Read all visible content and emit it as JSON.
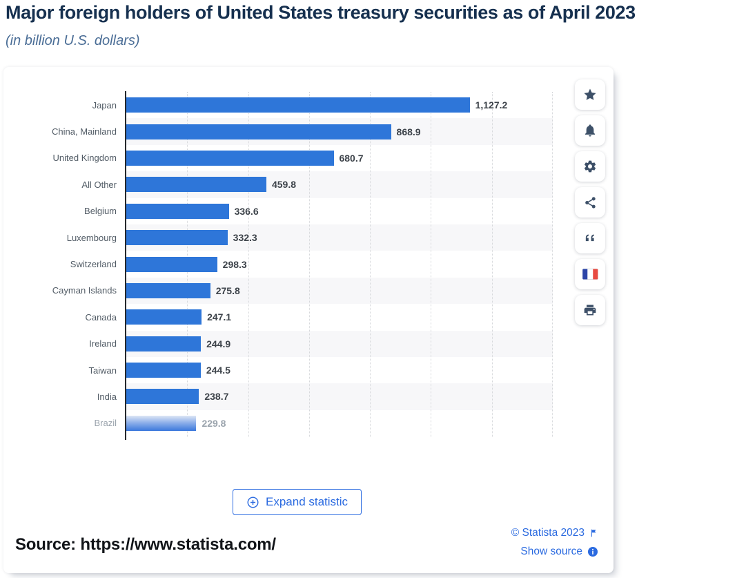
{
  "header": {
    "title": "Major foreign holders of United States treasury securities as of April 2023",
    "subtitle": "(in billion U.S. dollars)"
  },
  "chart_data": {
    "type": "bar",
    "orientation": "horizontal",
    "title": "Major foreign holders of United States treasury securities as of April 2023",
    "subtitle": "(in billion U.S. dollars)",
    "xlabel": "",
    "ylabel": "",
    "categories": [
      "Japan",
      "China, Mainland",
      "United Kingdom",
      "All Other",
      "Belgium",
      "Luxembourg",
      "Switzerland",
      "Cayman Islands",
      "Canada",
      "Ireland",
      "Taiwan",
      "India",
      "Brazil"
    ],
    "values": [
      1127.2,
      868.9,
      680.7,
      459.8,
      336.6,
      332.3,
      298.3,
      275.8,
      247.1,
      244.9,
      244.5,
      238.7,
      229.8
    ],
    "value_labels": [
      "1,127.2",
      "868.9",
      "680.7",
      "459.8",
      "336.6",
      "332.3",
      "298.3",
      "275.8",
      "247.1",
      "244.9",
      "244.5",
      "238.7",
      "229.8"
    ],
    "xlim": [
      0,
      1400
    ],
    "gridlines": [
      200,
      400,
      600,
      800,
      1000,
      1200,
      1400
    ],
    "grid": "vertical dotted lines, alternating row shading",
    "legend": "none",
    "bar_color": "#2e76d9",
    "last_bar_faded": true
  },
  "toolbar": {
    "icons": [
      {
        "name": "star-icon",
        "action": "favorite"
      },
      {
        "name": "bell-icon",
        "action": "alerts"
      },
      {
        "name": "gear-icon",
        "action": "settings"
      },
      {
        "name": "share-icon",
        "action": "share"
      },
      {
        "name": "quote-icon",
        "action": "cite"
      },
      {
        "name": "french-flag-icon",
        "action": "language-french"
      },
      {
        "name": "printer-icon",
        "action": "print"
      }
    ]
  },
  "footer": {
    "expand_label": "Expand statistic",
    "copyright": "© Statista 2023",
    "show_source": "Show source",
    "source_line": "Source: https://www.statista.com/"
  },
  "colors": {
    "bar": "#2e76d9",
    "title": "#16304f",
    "subtitle": "#4a6d96",
    "link": "#2a6ae0",
    "row_stripe": "#f7f7f9",
    "value_text": "#3d434a",
    "category_text": "#525c66",
    "faded_text": "#9ba4ad",
    "icon": "#3d5068",
    "flag_blue": "#2c45a8",
    "flag_red": "#e84b42"
  }
}
